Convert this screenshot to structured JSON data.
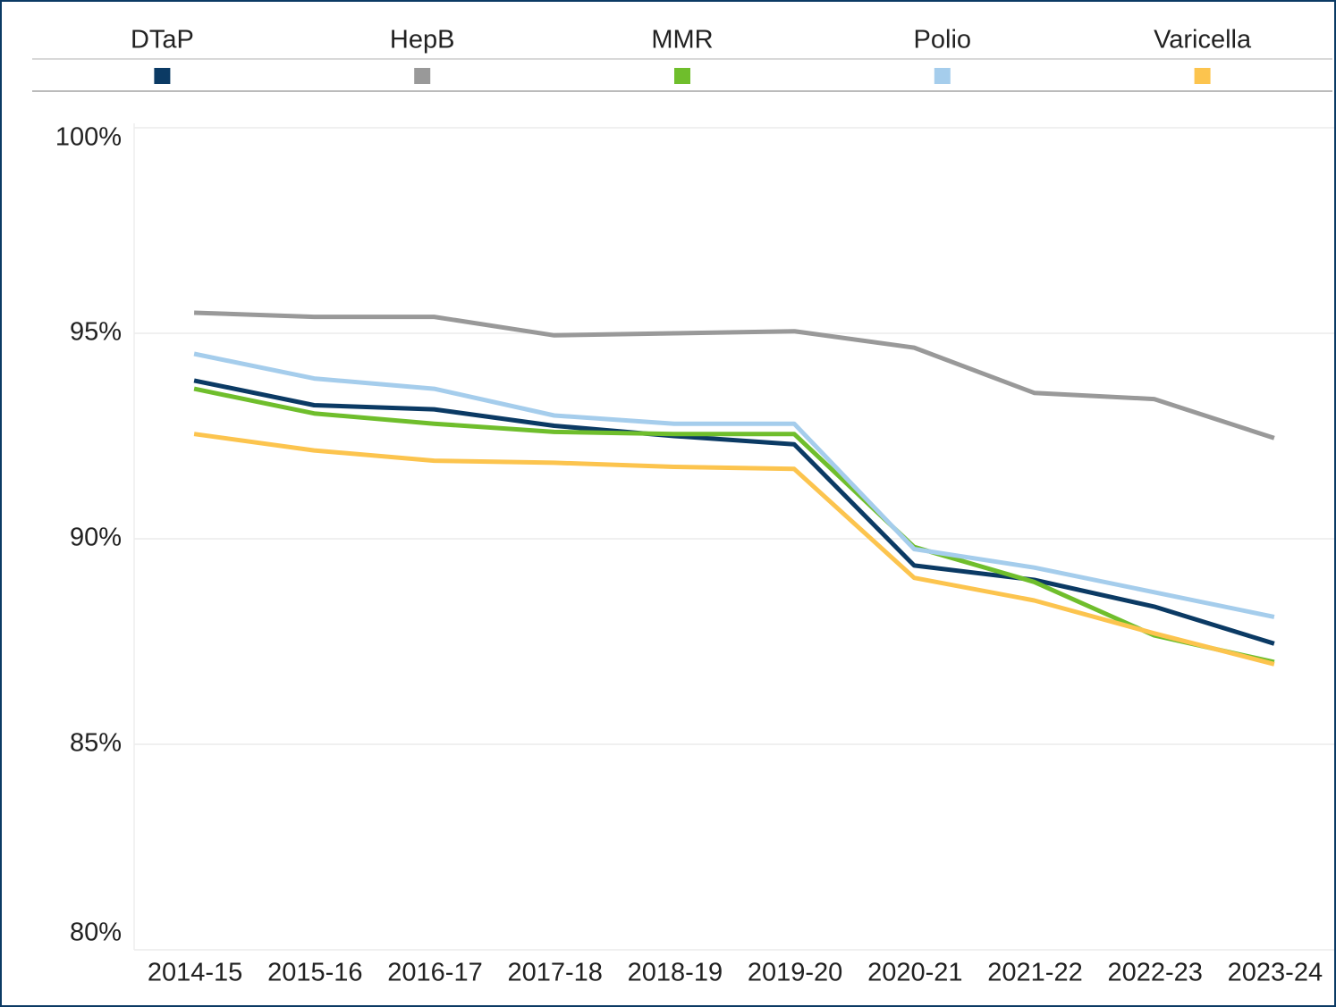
{
  "chart_data": {
    "type": "line",
    "categories": [
      "2014-15",
      "2015-16",
      "2016-17",
      "2017-18",
      "2018-19",
      "2019-20",
      "2020-21",
      "2021-22",
      "2022-23",
      "2023-24"
    ],
    "series": [
      {
        "name": "DTaP",
        "color": "#0b3a64",
        "values": [
          93.85,
          93.25,
          93.15,
          92.75,
          92.5,
          92.3,
          89.35,
          89.0,
          88.35,
          87.45
        ]
      },
      {
        "name": "HepB",
        "color": "#999999",
        "values": [
          95.5,
          95.4,
          95.4,
          94.95,
          95.0,
          95.05,
          94.65,
          93.55,
          93.4,
          92.45
        ]
      },
      {
        "name": "MMR",
        "color": "#6fbe2c",
        "values": [
          93.65,
          93.05,
          92.8,
          92.6,
          92.55,
          92.55,
          89.8,
          88.95,
          87.65,
          87.0
        ]
      },
      {
        "name": "Polio",
        "color": "#a5cdec",
        "values": [
          94.5,
          93.9,
          93.65,
          93.0,
          92.8,
          92.8,
          89.75,
          89.3,
          88.7,
          88.1
        ]
      },
      {
        "name": "Varicella",
        "color": "#fcc44e",
        "values": [
          92.55,
          92.15,
          91.9,
          91.85,
          91.75,
          91.7,
          89.05,
          88.5,
          87.7,
          86.95
        ]
      }
    ],
    "ylim": [
      80,
      100
    ],
    "yticks": [
      {
        "value": 80,
        "label": "80%"
      },
      {
        "value": 85,
        "label": "85%"
      },
      {
        "value": 90,
        "label": "90%"
      },
      {
        "value": 95,
        "label": "95%"
      },
      {
        "value": 100,
        "label": "100%"
      }
    ],
    "grid": true,
    "legend": "top"
  }
}
